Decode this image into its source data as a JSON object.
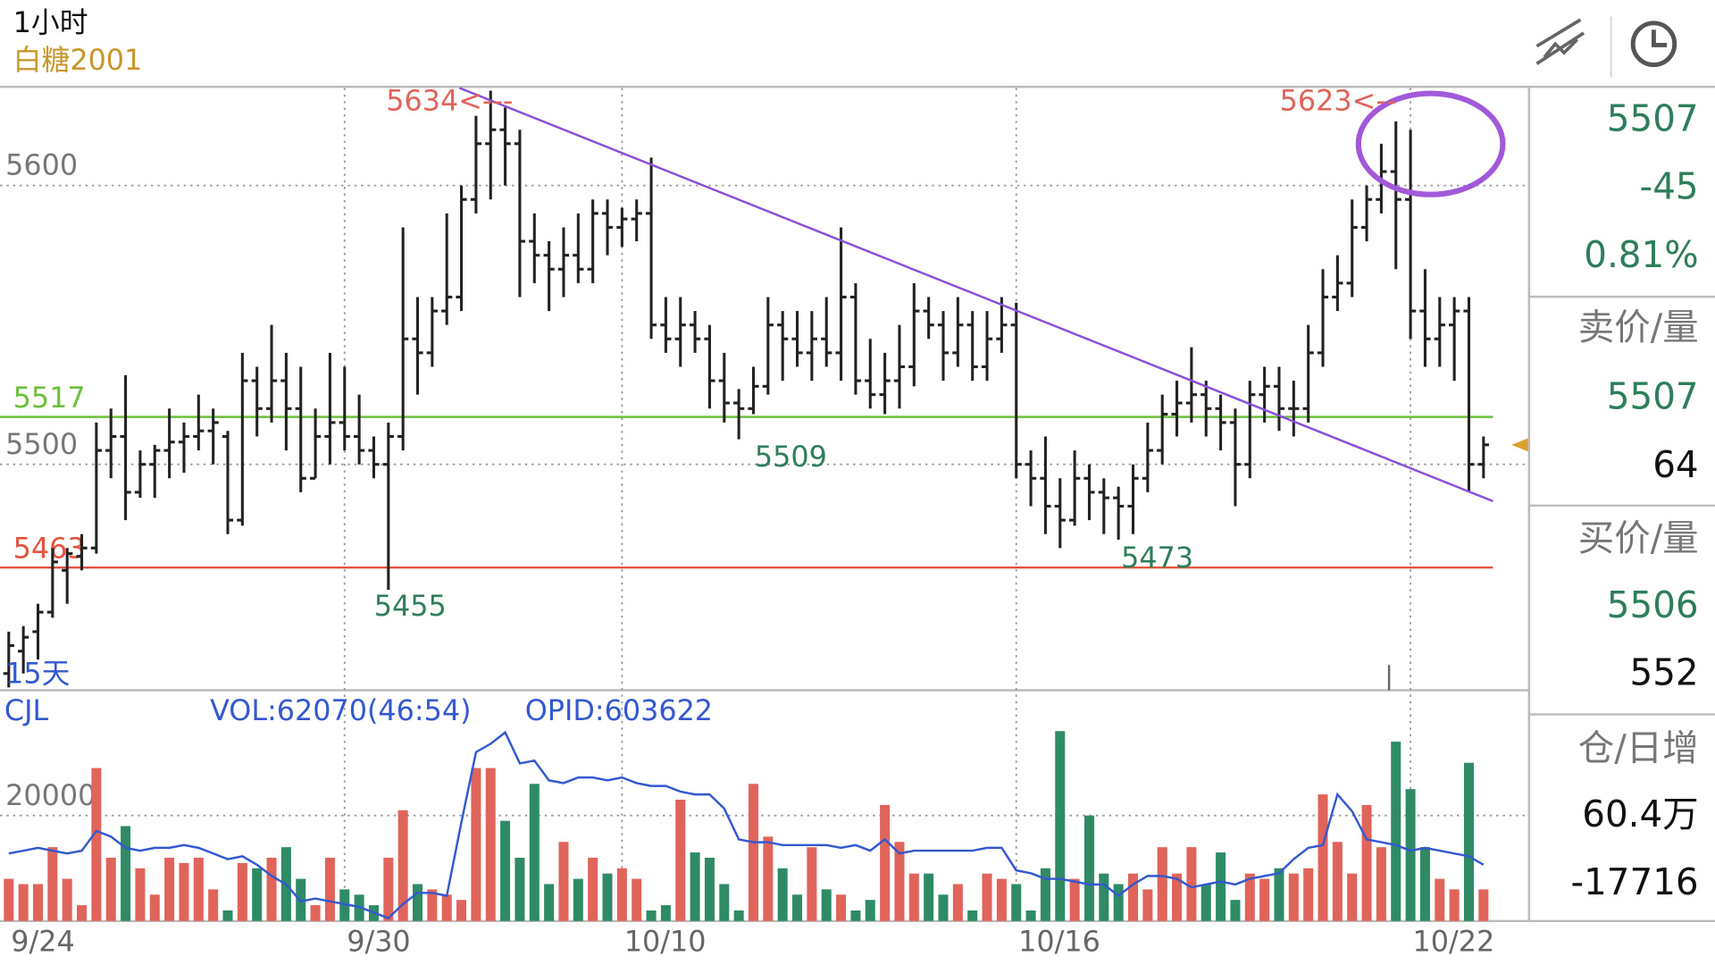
{
  "chart_data": {
    "type": "ohlc",
    "title": "1小时",
    "subtitle": "白糖2001",
    "categories": [
      "9/24",
      null,
      null,
      null,
      null,
      null,
      null,
      null,
      null,
      null,
      null,
      null,
      null,
      null,
      null,
      null,
      null,
      null,
      null,
      null,
      null,
      null,
      null,
      "9/30",
      null,
      null,
      null,
      null,
      null,
      null,
      null,
      null,
      null,
      null,
      null,
      null,
      null,
      null,
      null,
      null,
      null,
      null,
      "10/10",
      null,
      null,
      null,
      null,
      null,
      null,
      null,
      null,
      null,
      null,
      null,
      null,
      null,
      null,
      null,
      null,
      null,
      null,
      null,
      null,
      null,
      null,
      null,
      null,
      null,
      null,
      "10/16",
      null,
      null,
      null,
      null,
      null,
      null,
      null,
      null,
      null,
      null,
      null,
      null,
      null,
      null,
      null,
      null,
      null,
      null,
      null,
      null,
      null,
      null,
      null,
      null,
      null,
      null,
      "10/22",
      null,
      null,
      null
    ],
    "ohlc": [
      [
        5425,
        5440,
        5420,
        5435
      ],
      [
        5433,
        5442,
        5425,
        5438
      ],
      [
        5440,
        5450,
        5430,
        5447
      ],
      [
        5447,
        5470,
        5445,
        5465
      ],
      [
        5462,
        5470,
        5450,
        5468
      ],
      [
        5467,
        5475,
        5462,
        5470
      ],
      [
        5470,
        5515,
        5468,
        5505
      ],
      [
        5505,
        5520,
        5495,
        5510
      ],
      [
        5510,
        5532,
        5480,
        5490
      ],
      [
        5490,
        5505,
        5488,
        5500
      ],
      [
        5500,
        5507,
        5488,
        5505
      ],
      [
        5505,
        5520,
        5495,
        5508
      ],
      [
        5508,
        5515,
        5497,
        5510
      ],
      [
        5510,
        5525,
        5505,
        5512
      ],
      [
        5512,
        5520,
        5500,
        5515
      ],
      [
        5510,
        5512,
        5475,
        5480
      ],
      [
        5480,
        5540,
        5478,
        5530
      ],
      [
        5530,
        5535,
        5510,
        5520
      ],
      [
        5520,
        5550,
        5515,
        5530
      ],
      [
        5530,
        5540,
        5505,
        5520
      ],
      [
        5520,
        5535,
        5490,
        5495
      ],
      [
        5495,
        5520,
        5495,
        5510
      ],
      [
        5510,
        5540,
        5500,
        5515
      ],
      [
        5515,
        5535,
        5505,
        5510
      ],
      [
        5510,
        5525,
        5500,
        5505
      ],
      [
        5505,
        5510,
        5495,
        5500
      ],
      [
        5500,
        5515,
        5455,
        5510
      ],
      [
        5510,
        5585,
        5505,
        5545
      ],
      [
        5545,
        5560,
        5525,
        5540
      ],
      [
        5540,
        5560,
        5535,
        5555
      ],
      [
        5555,
        5590,
        5550,
        5560
      ],
      [
        5560,
        5600,
        5555,
        5595
      ],
      [
        5595,
        5625,
        5590,
        5615
      ],
      [
        5615,
        5634,
        5595,
        5620
      ],
      [
        5620,
        5628,
        5600,
        5615
      ],
      [
        5615,
        5620,
        5560,
        5580
      ],
      [
        5580,
        5590,
        5565,
        5575
      ],
      [
        5575,
        5580,
        5555,
        5570
      ],
      [
        5570,
        5585,
        5560,
        5575
      ],
      [
        5575,
        5590,
        5565,
        5570
      ],
      [
        5570,
        5595,
        5565,
        5590
      ],
      [
        5590,
        5595,
        5575,
        5585
      ],
      [
        5585,
        5592,
        5578,
        5588
      ],
      [
        5588,
        5595,
        5580,
        5590
      ],
      [
        5590,
        5610,
        5545,
        5550
      ],
      [
        5550,
        5560,
        5540,
        5545
      ],
      [
        5545,
        5560,
        5535,
        5550
      ],
      [
        5550,
        5555,
        5540,
        5545
      ],
      [
        5545,
        5550,
        5520,
        5530
      ],
      [
        5530,
        5540,
        5515,
        5522
      ],
      [
        5522,
        5527,
        5509,
        5520
      ],
      [
        5520,
        5535,
        5518,
        5528
      ],
      [
        5528,
        5560,
        5525,
        5550
      ],
      [
        5550,
        5555,
        5530,
        5545
      ],
      [
        5545,
        5555,
        5535,
        5540
      ],
      [
        5540,
        5555,
        5530,
        5545
      ],
      [
        5545,
        5560,
        5535,
        5540
      ],
      [
        5540,
        5585,
        5530,
        5560
      ],
      [
        5560,
        5565,
        5525,
        5530
      ],
      [
        5530,
        5545,
        5520,
        5525
      ],
      [
        5525,
        5540,
        5518,
        5530
      ],
      [
        5530,
        5550,
        5520,
        5535
      ],
      [
        5535,
        5565,
        5528,
        5555
      ],
      [
        5555,
        5560,
        5545,
        5550
      ],
      [
        5550,
        5555,
        5530,
        5540
      ],
      [
        5540,
        5560,
        5535,
        5550
      ],
      [
        5550,
        5555,
        5530,
        5535
      ],
      [
        5535,
        5555,
        5530,
        5545
      ],
      [
        5545,
        5560,
        5540,
        5550
      ],
      [
        5550,
        5558,
        5495,
        5500
      ],
      [
        5500,
        5505,
        5485,
        5495
      ],
      [
        5495,
        5510,
        5475,
        5485
      ],
      [
        5485,
        5495,
        5470,
        5480
      ],
      [
        5480,
        5505,
        5478,
        5495
      ],
      [
        5495,
        5500,
        5480,
        5490
      ],
      [
        5490,
        5495,
        5475,
        5488
      ],
      [
        5488,
        5492,
        5473,
        5485
      ],
      [
        5485,
        5500,
        5475,
        5495
      ],
      [
        5495,
        5515,
        5490,
        5505
      ],
      [
        5505,
        5525,
        5500,
        5518
      ],
      [
        5518,
        5530,
        5510,
        5522
      ],
      [
        5522,
        5542,
        5515,
        5525
      ],
      [
        5525,
        5530,
        5510,
        5520
      ],
      [
        5520,
        5525,
        5505,
        5515
      ],
      [
        5515,
        5520,
        5485,
        5500
      ],
      [
        5500,
        5530,
        5495,
        5525
      ],
      [
        5525,
        5535,
        5515,
        5528
      ],
      [
        5528,
        5535,
        5512,
        5520
      ],
      [
        5520,
        5530,
        5510,
        5520
      ],
      [
        5520,
        5550,
        5515,
        5540
      ],
      [
        5540,
        5570,
        5535,
        5560
      ],
      [
        5560,
        5575,
        5555,
        5565
      ],
      [
        5565,
        5595,
        5560,
        5585
      ],
      [
        5585,
        5600,
        5580,
        5595
      ],
      [
        5595,
        5615,
        5590,
        5605
      ],
      [
        5605,
        5623,
        5570,
        5595
      ],
      [
        5595,
        5620,
        5545,
        5555
      ],
      [
        5555,
        5570,
        5535,
        5545
      ],
      [
        5545,
        5560,
        5535,
        5550
      ],
      [
        5550,
        5560,
        5530,
        5555
      ],
      [
        5555,
        5560,
        5490,
        5500
      ],
      [
        5500,
        5510,
        5495,
        5507
      ]
    ],
    "bar_color": "#222222",
    "ylim": [
      5419,
      5635
    ],
    "yticks": [
      5500,
      5600
    ],
    "grid": true,
    "levels": [
      {
        "value": 5517,
        "color": "#6cbf3c"
      },
      {
        "value": 5463,
        "color": "#e5533f"
      }
    ],
    "annotations": [
      {
        "text": "5634<---",
        "color": "#e0645a"
      },
      {
        "text": "5623<--",
        "color": "#e0645a"
      },
      {
        "text": "5509",
        "color": "#2e7d5b"
      },
      {
        "text": "5455",
        "color": "#2e7d5b"
      },
      {
        "text": "5473",
        "color": "#2e7d5b"
      },
      {
        "text": "15天",
        "color": "#3458d0"
      }
    ],
    "volume": {
      "label": "CJL",
      "text": "VOL:62070(46:54)",
      "up_color": "#e0645a",
      "down_color": "#2e8b65",
      "values": [
        8000,
        7000,
        7000,
        14000,
        8000,
        3000,
        29000,
        12000,
        18000,
        10000,
        5000,
        12000,
        11000,
        12000,
        6000,
        2000,
        11000,
        10000,
        12000,
        14000,
        8000,
        3000,
        12000,
        6000,
        5000,
        3000,
        12000,
        21000,
        7000,
        6000,
        5000,
        4000,
        29000,
        29000,
        19000,
        12000,
        26000,
        7000,
        15000,
        8000,
        12000,
        9000,
        10000,
        8000,
        2000,
        3000,
        23000,
        13000,
        12000,
        7000,
        2000,
        26000,
        16000,
        10000,
        5000,
        14000,
        6000,
        5000,
        2000,
        4000,
        22000,
        15000,
        9000,
        9000,
        5000,
        7000,
        2000,
        9000,
        8000,
        7000,
        2000,
        10000,
        36000,
        8000,
        20000,
        9000,
        7000,
        9000,
        6000,
        14000,
        9000,
        14000,
        7000,
        13000,
        4000,
        9000,
        8000,
        10000,
        9000,
        10000,
        24000,
        15000,
        9000,
        22000,
        14000,
        34000,
        25000,
        14000,
        8000,
        6000,
        30000,
        6000
      ],
      "ylim": [
        0,
        43750
      ],
      "yticks": [
        20000
      ]
    },
    "open_interest": {
      "label": "OPID:603622",
      "color": "#3458d0",
      "values": [
        604000,
        605000,
        606000,
        605000,
        604000,
        605000,
        612000,
        610000,
        606000,
        605000,
        606000,
        606000,
        607000,
        606000,
        604000,
        602000,
        603000,
        600000,
        596000,
        593000,
        587000,
        588000,
        587000,
        586000,
        585000,
        583000,
        581000,
        586000,
        590000,
        590000,
        589000,
        615000,
        640000,
        643000,
        647000,
        636000,
        637000,
        630000,
        629000,
        631000,
        631000,
        630000,
        631000,
        629000,
        628000,
        628000,
        626000,
        625000,
        625000,
        620000,
        609000,
        608000,
        608000,
        607000,
        607000,
        607000,
        607000,
        606000,
        607000,
        605000,
        609000,
        604000,
        605000,
        605000,
        605000,
        605000,
        605000,
        606000,
        606000,
        598000,
        597000,
        595000,
        595000,
        594000,
        593000,
        593000,
        589000,
        593000,
        596000,
        596000,
        595000,
        592000,
        593000,
        594000,
        593000,
        595000,
        596000,
        597000,
        602000,
        606000,
        607000,
        625000,
        619000,
        609000,
        608000,
        607000,
        605000,
        606000,
        605000,
        604000,
        603000,
        600000
      ],
      "ylim": [
        580000,
        662000
      ]
    }
  },
  "side_panel": {
    "last": 5507,
    "change": "-45",
    "change_pct": "0.81%",
    "ask_label": "卖价/量",
    "ask_price": 5507,
    "ask_volume": 64,
    "bid_label": "买价/量",
    "bid_price": 5506,
    "bid_volume": 552,
    "oi_label": "仓/日增",
    "oi": "60.4万",
    "oi_change": -17716
  }
}
